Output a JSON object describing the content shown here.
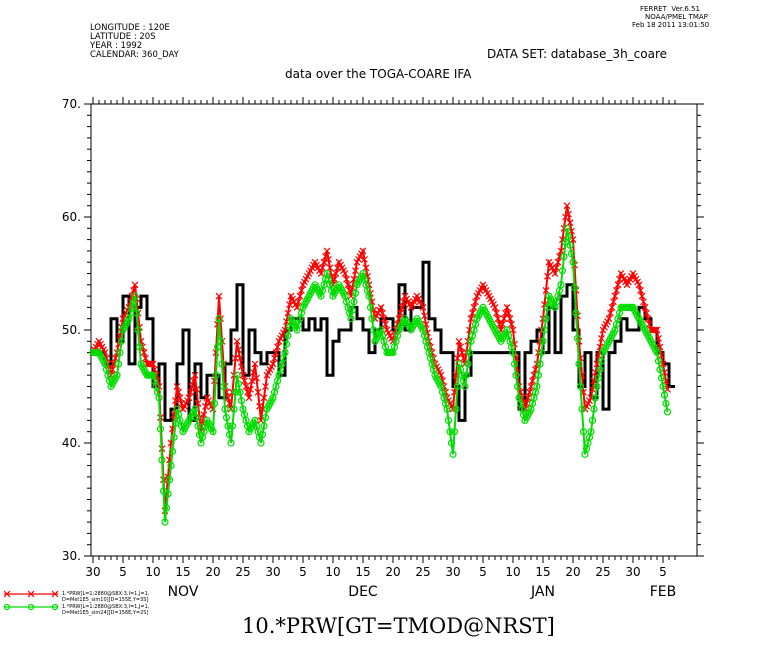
{
  "header": {
    "longitude": "LONGITUDE : 120E",
    "latitude": "LATITUDE : 20S",
    "year": "YEAR : 1992",
    "calendar": "CALENDAR: 360_DAY",
    "ferret_line1": "FERRET  Ver.6.51",
    "ferret_line2": "NOAA/PMEL TMAP",
    "ferret_line3": "Feb 18 2011 13:01:50",
    "dataset": "DATA SET: database_3h_coare",
    "subtitle": "data over the TOGA-COARE IFA"
  },
  "legend": [
    {
      "line1": "1.*PRW[L=1:2880@SBX:3,I=1,J=1,",
      "line2": "D=Met1E5_sim10][D=155E,Y=3S]",
      "color": "#ff0000",
      "marker": "x"
    },
    {
      "line1": "1.*PRW[L=1:2880@SBX:3,I=1,J=1,",
      "line2": "D=Met1E5_sim24][D=156E,Y=2S]",
      "color": "#00dd00",
      "marker": "o"
    }
  ],
  "bottom_title": "10.*PRW[GT=TMOD@NRST]",
  "chart_data": {
    "type": "line",
    "title": "data over the TOGA-COARE IFA",
    "xlabel": "",
    "ylabel": "",
    "ylim": [
      30,
      70
    ],
    "yticks": [
      30,
      40,
      50,
      60,
      70
    ],
    "ytick_labels": [
      "30.",
      "40.",
      "50.",
      "60.",
      "70."
    ],
    "xlim": [
      0,
      97
    ],
    "xticks": [
      {
        "day": 0,
        "label": "30"
      },
      {
        "day": 5,
        "label": "5"
      },
      {
        "day": 10,
        "label": "10"
      },
      {
        "day": 15,
        "label": "15"
      },
      {
        "day": 20,
        "label": "20"
      },
      {
        "day": 25,
        "label": "25"
      },
      {
        "day": 30,
        "label": "30"
      },
      {
        "day": 35,
        "label": "5"
      },
      {
        "day": 40,
        "label": "10"
      },
      {
        "day": 45,
        "label": "15"
      },
      {
        "day": 50,
        "label": "20"
      },
      {
        "day": 55,
        "label": "25"
      },
      {
        "day": 60,
        "label": "30"
      },
      {
        "day": 65,
        "label": "5"
      },
      {
        "day": 70,
        "label": "10"
      },
      {
        "day": 75,
        "label": "15"
      },
      {
        "day": 80,
        "label": "20"
      },
      {
        "day": 85,
        "label": "25"
      },
      {
        "day": 90,
        "label": "30"
      },
      {
        "day": 95,
        "label": "5"
      }
    ],
    "month_labels": [
      {
        "day": 15,
        "label": "NOV"
      },
      {
        "day": 45,
        "label": "DEC"
      },
      {
        "day": 75,
        "label": "JAN"
      },
      {
        "day": 95,
        "label": "FEB"
      }
    ],
    "series": [
      {
        "color": "#000000",
        "style": "step",
        "x": [
          0,
          1,
          2,
          3,
          4,
          5,
          6,
          7,
          8,
          9,
          10,
          11,
          12,
          13,
          14,
          15,
          16,
          17,
          18,
          19,
          20,
          21,
          22,
          23,
          24,
          25,
          26,
          27,
          28,
          29,
          30,
          31,
          32,
          33,
          34,
          35,
          36,
          37,
          38,
          39,
          40,
          41,
          42,
          43,
          44,
          45,
          46,
          47,
          48,
          49,
          50,
          51,
          52,
          53,
          54,
          55,
          56,
          57,
          58,
          59,
          60,
          61,
          62,
          63,
          64,
          65,
          66,
          67,
          68,
          69,
          70,
          71,
          72,
          73,
          74,
          75,
          76,
          77,
          78,
          79,
          80,
          81,
          82,
          83,
          84,
          85,
          86,
          87,
          88,
          89,
          90,
          91,
          92,
          93,
          94,
          95,
          96
        ],
        "values": [
          48,
          48,
          47,
          51,
          49,
          53,
          47,
          52,
          53,
          51,
          45,
          47,
          42,
          43,
          47,
          50,
          42,
          47,
          44,
          46,
          46,
          44,
          47,
          50,
          54,
          46,
          50,
          48,
          47,
          48,
          48,
          46,
          50,
          51,
          51,
          50,
          51,
          50,
          51,
          46,
          49,
          50,
          50,
          52,
          51,
          50,
          48,
          50,
          51,
          51,
          50,
          54,
          50,
          52,
          52,
          56,
          51,
          50,
          48,
          48,
          45,
          42,
          46,
          48,
          48,
          48,
          48,
          48,
          48,
          48,
          48,
          43,
          48,
          49,
          50,
          48,
          52,
          48,
          53,
          54,
          50,
          45,
          48,
          44,
          48,
          43,
          48,
          49,
          51,
          50,
          50,
          52,
          51,
          50,
          48,
          47,
          45
        ]
      },
      {
        "color": "#ff0000",
        "marker": "x",
        "x": [
          0,
          1,
          2,
          3,
          4,
          5,
          6,
          7,
          8,
          9,
          10,
          11,
          12,
          13,
          14,
          15,
          16,
          17,
          18,
          19,
          20,
          21,
          22,
          23,
          24,
          25,
          26,
          27,
          28,
          29,
          30,
          31,
          32,
          33,
          34,
          35,
          36,
          37,
          38,
          39,
          40,
          41,
          42,
          43,
          44,
          45,
          46,
          47,
          48,
          49,
          50,
          51,
          52,
          53,
          54,
          55,
          56,
          57,
          58,
          59,
          60,
          61,
          62,
          63,
          64,
          65,
          66,
          67,
          68,
          69,
          70,
          71,
          72,
          73,
          74,
          75,
          76,
          77,
          78,
          79,
          80,
          81,
          82,
          83,
          84,
          85,
          86,
          87,
          88,
          89,
          90,
          91,
          92,
          93,
          94,
          95,
          96
        ],
        "values": [
          48,
          49,
          48,
          46,
          48,
          51,
          52,
          54,
          49,
          47,
          47,
          45,
          34,
          40,
          45,
          43,
          44,
          46,
          41,
          44,
          43,
          53,
          45,
          43,
          49,
          46,
          44,
          47,
          42,
          46,
          47,
          49,
          50,
          53,
          52,
          54,
          55,
          56,
          55,
          57,
          54,
          56,
          55,
          53,
          56,
          57,
          54,
          51,
          52,
          50,
          49,
          51,
          53,
          52,
          53,
          52,
          49,
          47,
          46,
          44,
          43,
          49,
          47,
          51,
          53,
          54,
          53,
          52,
          50,
          52,
          50,
          45,
          43,
          45,
          47,
          51,
          56,
          55,
          57,
          61,
          58,
          49,
          43,
          44,
          47,
          50,
          51,
          53,
          55,
          54,
          55,
          54,
          52,
          50,
          50,
          47,
          44
        ]
      },
      {
        "color": "#00dd00",
        "marker": "o",
        "x": [
          0,
          1,
          2,
          3,
          4,
          5,
          6,
          7,
          8,
          9,
          10,
          11,
          12,
          13,
          14,
          15,
          16,
          17,
          18,
          19,
          20,
          21,
          22,
          23,
          24,
          25,
          26,
          27,
          28,
          29,
          30,
          31,
          32,
          33,
          34,
          35,
          36,
          37,
          38,
          39,
          40,
          41,
          42,
          43,
          44,
          45,
          46,
          47,
          48,
          49,
          50,
          51,
          52,
          53,
          54,
          55,
          56,
          57,
          58,
          59,
          60,
          61,
          62,
          63,
          64,
          65,
          66,
          67,
          68,
          69,
          70,
          71,
          72,
          73,
          74,
          75,
          76,
          77,
          78,
          79,
          80,
          81,
          82,
          83,
          84,
          85,
          86,
          87,
          88,
          89,
          90,
          91,
          92,
          93,
          94,
          95,
          96
        ],
        "values": [
          48,
          48,
          47,
          45,
          46,
          50,
          51,
          53,
          47,
          46,
          46,
          44,
          33,
          38,
          43,
          41,
          42,
          43,
          40,
          42,
          41,
          51,
          43,
          40,
          46,
          43,
          41,
          42,
          40,
          43,
          44,
          46,
          48,
          51,
          50,
          52,
          53,
          54,
          53,
          55,
          53,
          54,
          53,
          51,
          54,
          55,
          53,
          49,
          50,
          48,
          48,
          50,
          51,
          50,
          51,
          50,
          48,
          46,
          45,
          43,
          39,
          47,
          45,
          49,
          51,
          52,
          51,
          50,
          49,
          50,
          48,
          44,
          42,
          43,
          45,
          49,
          53,
          52,
          54,
          59,
          56,
          47,
          39,
          41,
          45,
          48,
          49,
          50,
          52,
          52,
          52,
          51,
          50,
          49,
          48,
          45,
          42
        ]
      }
    ]
  }
}
